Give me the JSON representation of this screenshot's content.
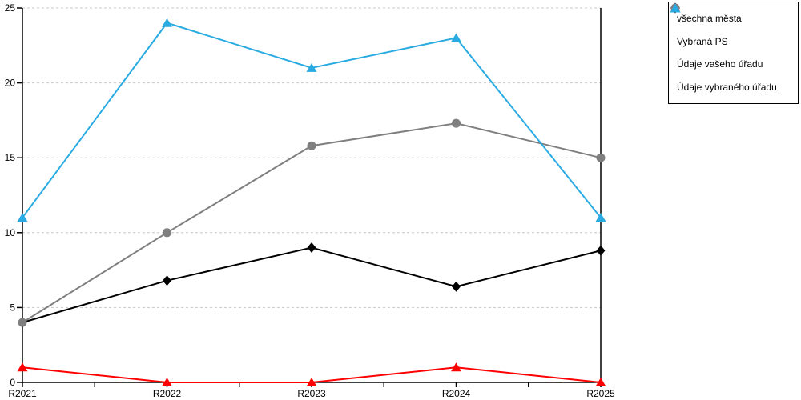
{
  "chart_data": {
    "type": "line",
    "title": "",
    "xlabel": "",
    "ylabel": "",
    "categories": [
      "R2021",
      "R2022",
      "R2023",
      "R2024",
      "R2025"
    ],
    "series": [
      {
        "name": "všechna města",
        "marker": "diamond",
        "color": "#000000",
        "values": [
          4,
          6.8,
          9,
          6.4,
          8.8
        ]
      },
      {
        "name": "Vybraná PS",
        "marker": "circle",
        "color": "#7F7F7F",
        "values": [
          4,
          10,
          15.8,
          17.3,
          15
        ]
      },
      {
        "name": "Údaje vašeho úřadu",
        "marker": "triangle",
        "color": "#FF0000",
        "values": [
          1,
          0,
          0,
          1,
          0
        ]
      },
      {
        "name": "Údaje vybraného úřadu",
        "marker": "triangle",
        "color": "#29ABE2",
        "values": [
          11,
          24,
          21,
          23,
          11
        ]
      }
    ],
    "ylim": [
      0,
      25
    ],
    "yticks": [
      0,
      5,
      10,
      15,
      20,
      25
    ],
    "grid": "horizontal-dashed",
    "legend_position": "top-right"
  },
  "style_colors": {
    "axis": "#000000",
    "gridline": "#C8C8C8",
    "background": "#FFFFFF"
  }
}
